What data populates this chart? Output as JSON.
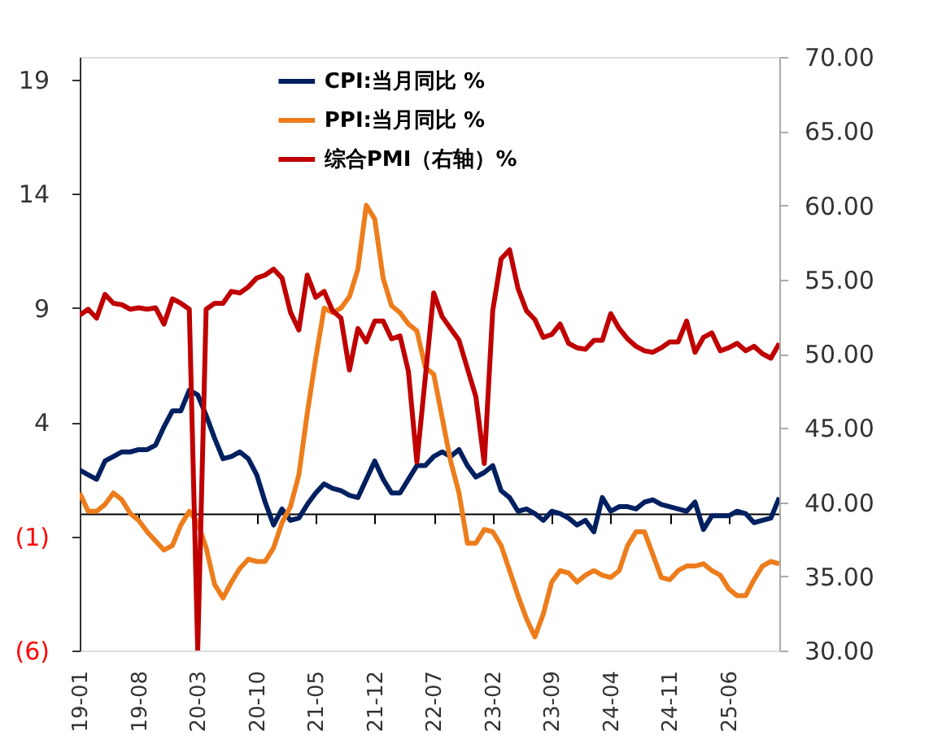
{
  "chart_data": {
    "type": "line",
    "categories": [
      "19-01",
      null,
      null,
      null,
      null,
      null,
      null,
      "19-08",
      null,
      null,
      null,
      null,
      null,
      null,
      "20-03",
      null,
      null,
      null,
      null,
      null,
      null,
      "20-10",
      null,
      null,
      null,
      null,
      null,
      null,
      "21-05",
      null,
      null,
      null,
      null,
      null,
      null,
      "21-12",
      null,
      null,
      null,
      null,
      null,
      null,
      "22-07",
      null,
      null,
      null,
      null,
      null,
      null,
      "23-02",
      null,
      null,
      null,
      null,
      null,
      null,
      "23-09",
      null,
      null,
      null,
      null,
      null,
      null,
      "24-04",
      null,
      null,
      null,
      null,
      null,
      null,
      "24-11",
      null,
      null,
      null,
      null,
      null,
      null,
      "25-06",
      null,
      null,
      null,
      null,
      null,
      null
    ],
    "series": [
      {
        "name": "CPI:当月同比 %",
        "color": "#002060",
        "values": [
          1.9,
          1.7,
          1.5,
          2.3,
          2.5,
          2.7,
          2.7,
          2.8,
          2.8,
          3.0,
          3.8,
          4.5,
          4.5,
          5.4,
          5.2,
          4.3,
          3.3,
          2.4,
          2.5,
          2.7,
          2.4,
          1.7,
          0.5,
          -0.5,
          0.2,
          -0.3,
          -0.2,
          0.4,
          0.9,
          1.3,
          1.1,
          1.0,
          0.8,
          0.7,
          1.5,
          2.3,
          1.5,
          0.9,
          0.9,
          1.5,
          2.1,
          2.1,
          2.5,
          2.7,
          2.5,
          2.8,
          2.1,
          1.6,
          1.8,
          2.1,
          1.0,
          0.7,
          0.1,
          0.2,
          0.0,
          -0.3,
          0.1,
          0.0,
          -0.2,
          -0.5,
          -0.3,
          -0.8,
          0.7,
          0.1,
          0.3,
          0.3,
          0.2,
          0.5,
          0.6,
          0.4,
          0.3,
          0.2,
          0.1,
          0.5,
          -0.7,
          -0.1,
          -0.1,
          -0.1,
          0.1,
          0.0,
          -0.4,
          -0.3,
          -0.2,
          0.7
        ]
      },
      {
        "name": "PPI:当月同比 %",
        "color": "#ed7d1c",
        "values": [
          0.9,
          0.1,
          0.1,
          0.4,
          0.9,
          0.6,
          0.0,
          -0.3,
          -0.8,
          -1.2,
          -1.6,
          -1.4,
          -0.5,
          0.1,
          -0.4,
          -1.5,
          -3.1,
          -3.7,
          -3.0,
          -2.4,
          -2.0,
          -2.1,
          -2.1,
          -1.5,
          -0.4,
          0.3,
          1.7,
          4.4,
          6.8,
          9.0,
          8.8,
          9.0,
          9.5,
          10.7,
          13.5,
          12.9,
          10.3,
          9.1,
          8.8,
          8.3,
          8.0,
          6.4,
          6.1,
          4.2,
          2.3,
          0.9,
          -1.3,
          -1.3,
          -0.7,
          -0.8,
          -1.4,
          -2.5,
          -3.6,
          -4.6,
          -5.4,
          -4.4,
          -3.0,
          -2.5,
          -2.6,
          -3.0,
          -2.7,
          -2.5,
          -2.7,
          -2.8,
          -2.5,
          -1.4,
          -0.8,
          -0.8,
          -1.8,
          -2.8,
          -2.9,
          -2.5,
          -2.3,
          -2.3,
          -2.2,
          -2.5,
          -2.7,
          -3.3,
          -3.6,
          -3.6,
          -2.9,
          -2.3,
          -2.1,
          -2.2
        ]
      },
      {
        "name": "综合PMI（右轴）%",
        "color": "#c00000",
        "axis": "y2",
        "values": [
          52.6,
          53.0,
          52.4,
          54.0,
          53.4,
          53.3,
          53.0,
          53.1,
          53.0,
          53.1,
          52.0,
          53.7,
          53.4,
          53.0,
          30.0,
          53.0,
          53.4,
          53.4,
          54.2,
          54.1,
          54.5,
          55.1,
          55.3,
          55.7,
          55.1,
          52.8,
          51.6,
          55.3,
          53.8,
          54.2,
          52.9,
          52.4,
          48.9,
          51.7,
          50.8,
          52.2,
          52.2,
          51.0,
          51.2,
          48.8,
          42.7,
          48.4,
          54.1,
          52.5,
          51.7,
          50.9,
          49.0,
          47.1,
          42.6,
          52.9,
          56.4,
          57.0,
          54.4,
          52.9,
          52.3,
          51.1,
          51.3,
          52.0,
          50.7,
          50.4,
          50.3,
          50.9,
          50.9,
          52.7,
          51.7,
          51.0,
          50.5,
          50.2,
          50.1,
          50.4,
          50.8,
          50.8,
          52.2,
          50.1,
          51.1,
          51.4,
          50.2,
          50.4,
          50.7,
          50.2,
          50.5,
          50.0,
          49.7,
          50.7
        ]
      }
    ],
    "ylim": [
      -6,
      20
    ],
    "yticks": [
      {
        "value": -6,
        "label": "(6)"
      },
      {
        "value": -1,
        "label": "(1)"
      },
      4,
      9,
      14,
      19
    ],
    "y2lim": [
      30,
      70
    ],
    "y2ticks": [
      {
        "value": 30,
        "label": "30.00"
      },
      {
        "value": 35,
        "label": "35.00"
      },
      {
        "value": 40,
        "label": "40.00"
      },
      {
        "value": 45,
        "label": "45.00"
      },
      {
        "value": 50,
        "label": "50.00"
      },
      {
        "value": 55,
        "label": "55.00"
      },
      {
        "value": 60,
        "label": "60.00"
      },
      {
        "value": 65,
        "label": "65.00"
      },
      {
        "value": 70,
        "label": "70.00"
      }
    ],
    "legend": "top",
    "grid": false,
    "line_style": "solid",
    "marker": "none"
  }
}
